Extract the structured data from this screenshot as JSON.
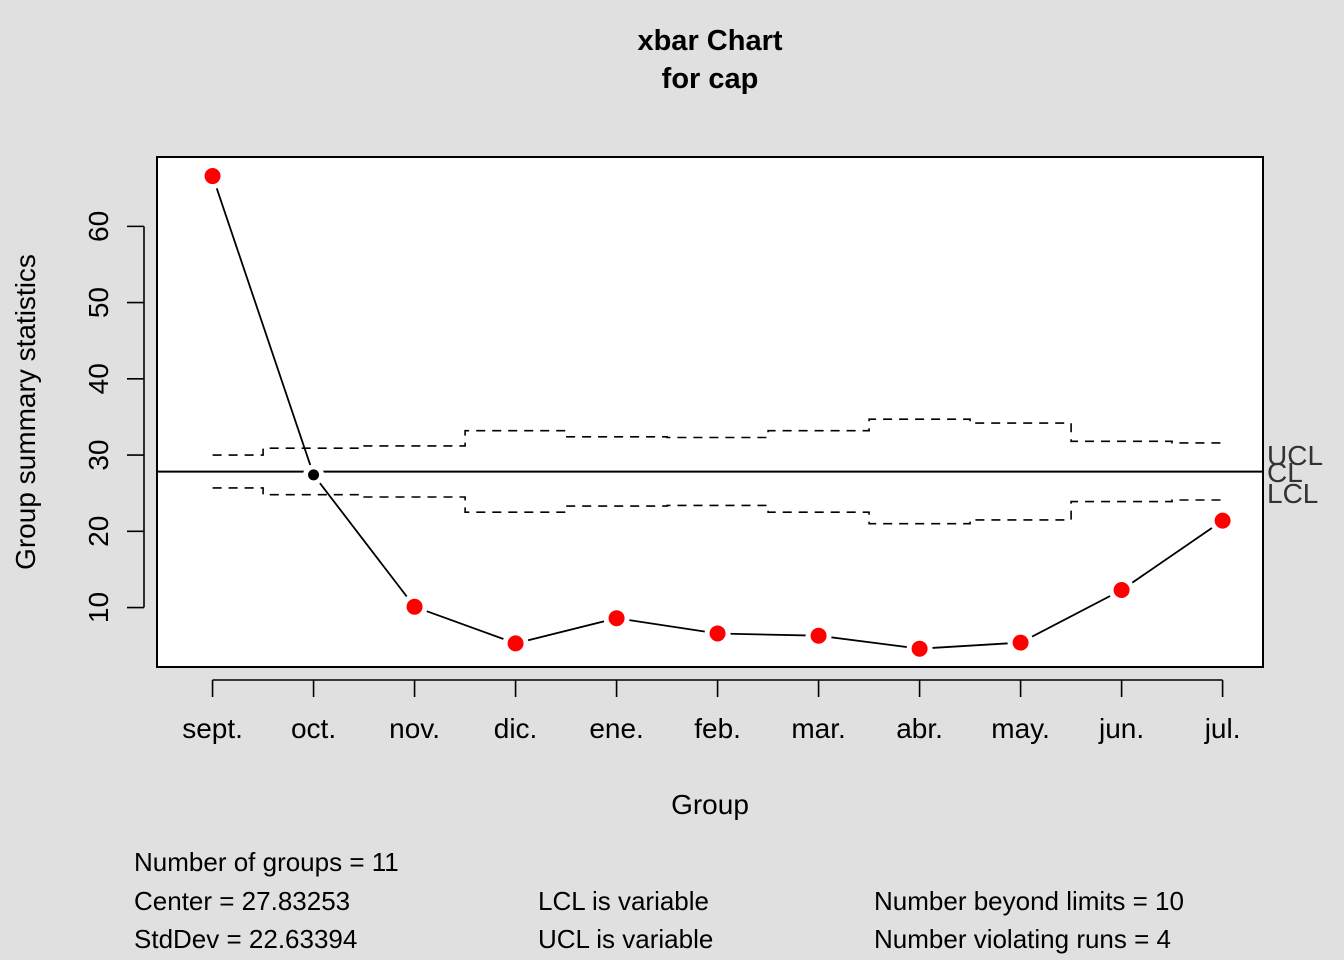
{
  "chart_data": {
    "type": "line",
    "title": "xbar Chart",
    "subtitle": "for cap",
    "xlabel": "Group",
    "ylabel": "Group summary statistics",
    "categories": [
      "sept.",
      "oct.",
      "nov.",
      "dic.",
      "ene.",
      "feb.",
      "mar.",
      "abr.",
      "may.",
      "jun.",
      "jul."
    ],
    "values": [
      66.6,
      27.4,
      10.1,
      5.3,
      8.6,
      6.6,
      6.3,
      4.6,
      5.4,
      12.3,
      21.4
    ],
    "beyond_limits": [
      true,
      false,
      true,
      true,
      true,
      true,
      true,
      true,
      true,
      true,
      true
    ],
    "center": 27.83253,
    "ucl": [
      30.0,
      30.9,
      31.2,
      33.2,
      32.4,
      32.3,
      33.2,
      34.7,
      34.2,
      31.8,
      31.6
    ],
    "lcl": [
      25.7,
      24.8,
      24.5,
      22.5,
      23.3,
      23.4,
      22.5,
      21.0,
      21.5,
      23.9,
      24.1
    ],
    "yticks": [
      10,
      20,
      30,
      40,
      50,
      60
    ],
    "ylim": [
      2.2,
      69.1
    ],
    "xlim": [
      0.45,
      11.4
    ],
    "limit_labels": [
      "UCL",
      "CL",
      "LCL"
    ],
    "colors": {
      "beyond": "#ff0000",
      "normal": "#000000",
      "background": "#e0e0e0",
      "panel": "#ffffff"
    }
  },
  "stats": {
    "groups": "Number of groups = 11",
    "center": "Center = 27.83253",
    "stddev": "StdDev = 22.63394",
    "lcl": "LCL is variable",
    "ucl": "UCL is variable",
    "beyond": "Number beyond limits = 10",
    "runs": "Number violating runs = 4"
  }
}
